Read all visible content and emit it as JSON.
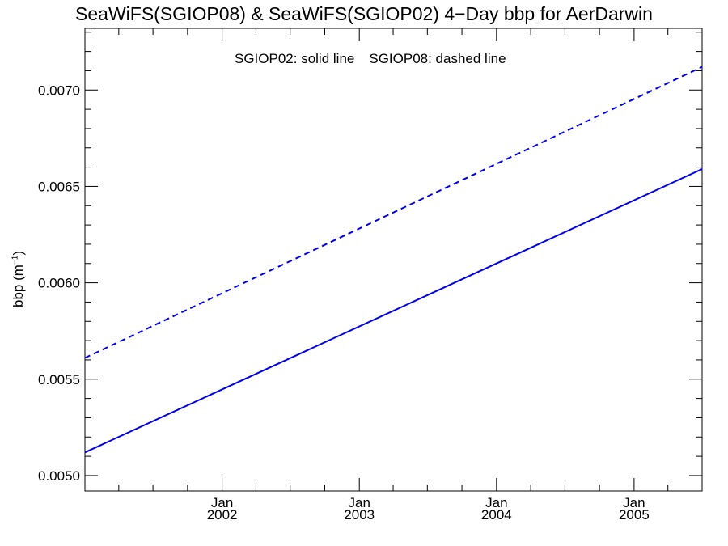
{
  "chart_data": {
    "type": "line",
    "title": "SeaWiFS(SGIOP08) & SeaWiFS(SGIOP02) 4−Day bbp for AerDarwin",
    "ylabel_main": "bbp (m",
    "ylabel_sup": "−1",
    "ylabel_close": ")",
    "legend": [
      "SGIOP02: solid line",
      "SGIOP08: dashed line"
    ],
    "x_range": [
      "2001-01-01",
      "2005-07-01"
    ],
    "ylim": [
      0.00492,
      0.00732
    ],
    "yticks": [
      "0.0050",
      "0.0055",
      "0.0060",
      "0.0065",
      "0.0070"
    ],
    "xtick_labels": [
      {
        "month": "Jan",
        "year": "2002",
        "date": "2002-01-01"
      },
      {
        "month": "Jan",
        "year": "2003",
        "date": "2003-01-01"
      },
      {
        "month": "Jan",
        "year": "2004",
        "date": "2004-01-01"
      },
      {
        "month": "Jan",
        "year": "2005",
        "date": "2005-01-01"
      }
    ],
    "series": [
      {
        "name": "SGIOP02",
        "style": "solid",
        "color": "#0000ee",
        "x": [
          "2001-01-01",
          "2005-07-01"
        ],
        "y": [
          0.00512,
          0.00659
        ]
      },
      {
        "name": "SGIOP08",
        "style": "dashed",
        "color": "#0000ee",
        "x": [
          "2001-01-01",
          "2005-07-01"
        ],
        "y": [
          0.00561,
          0.00712
        ]
      }
    ],
    "grid": false
  }
}
